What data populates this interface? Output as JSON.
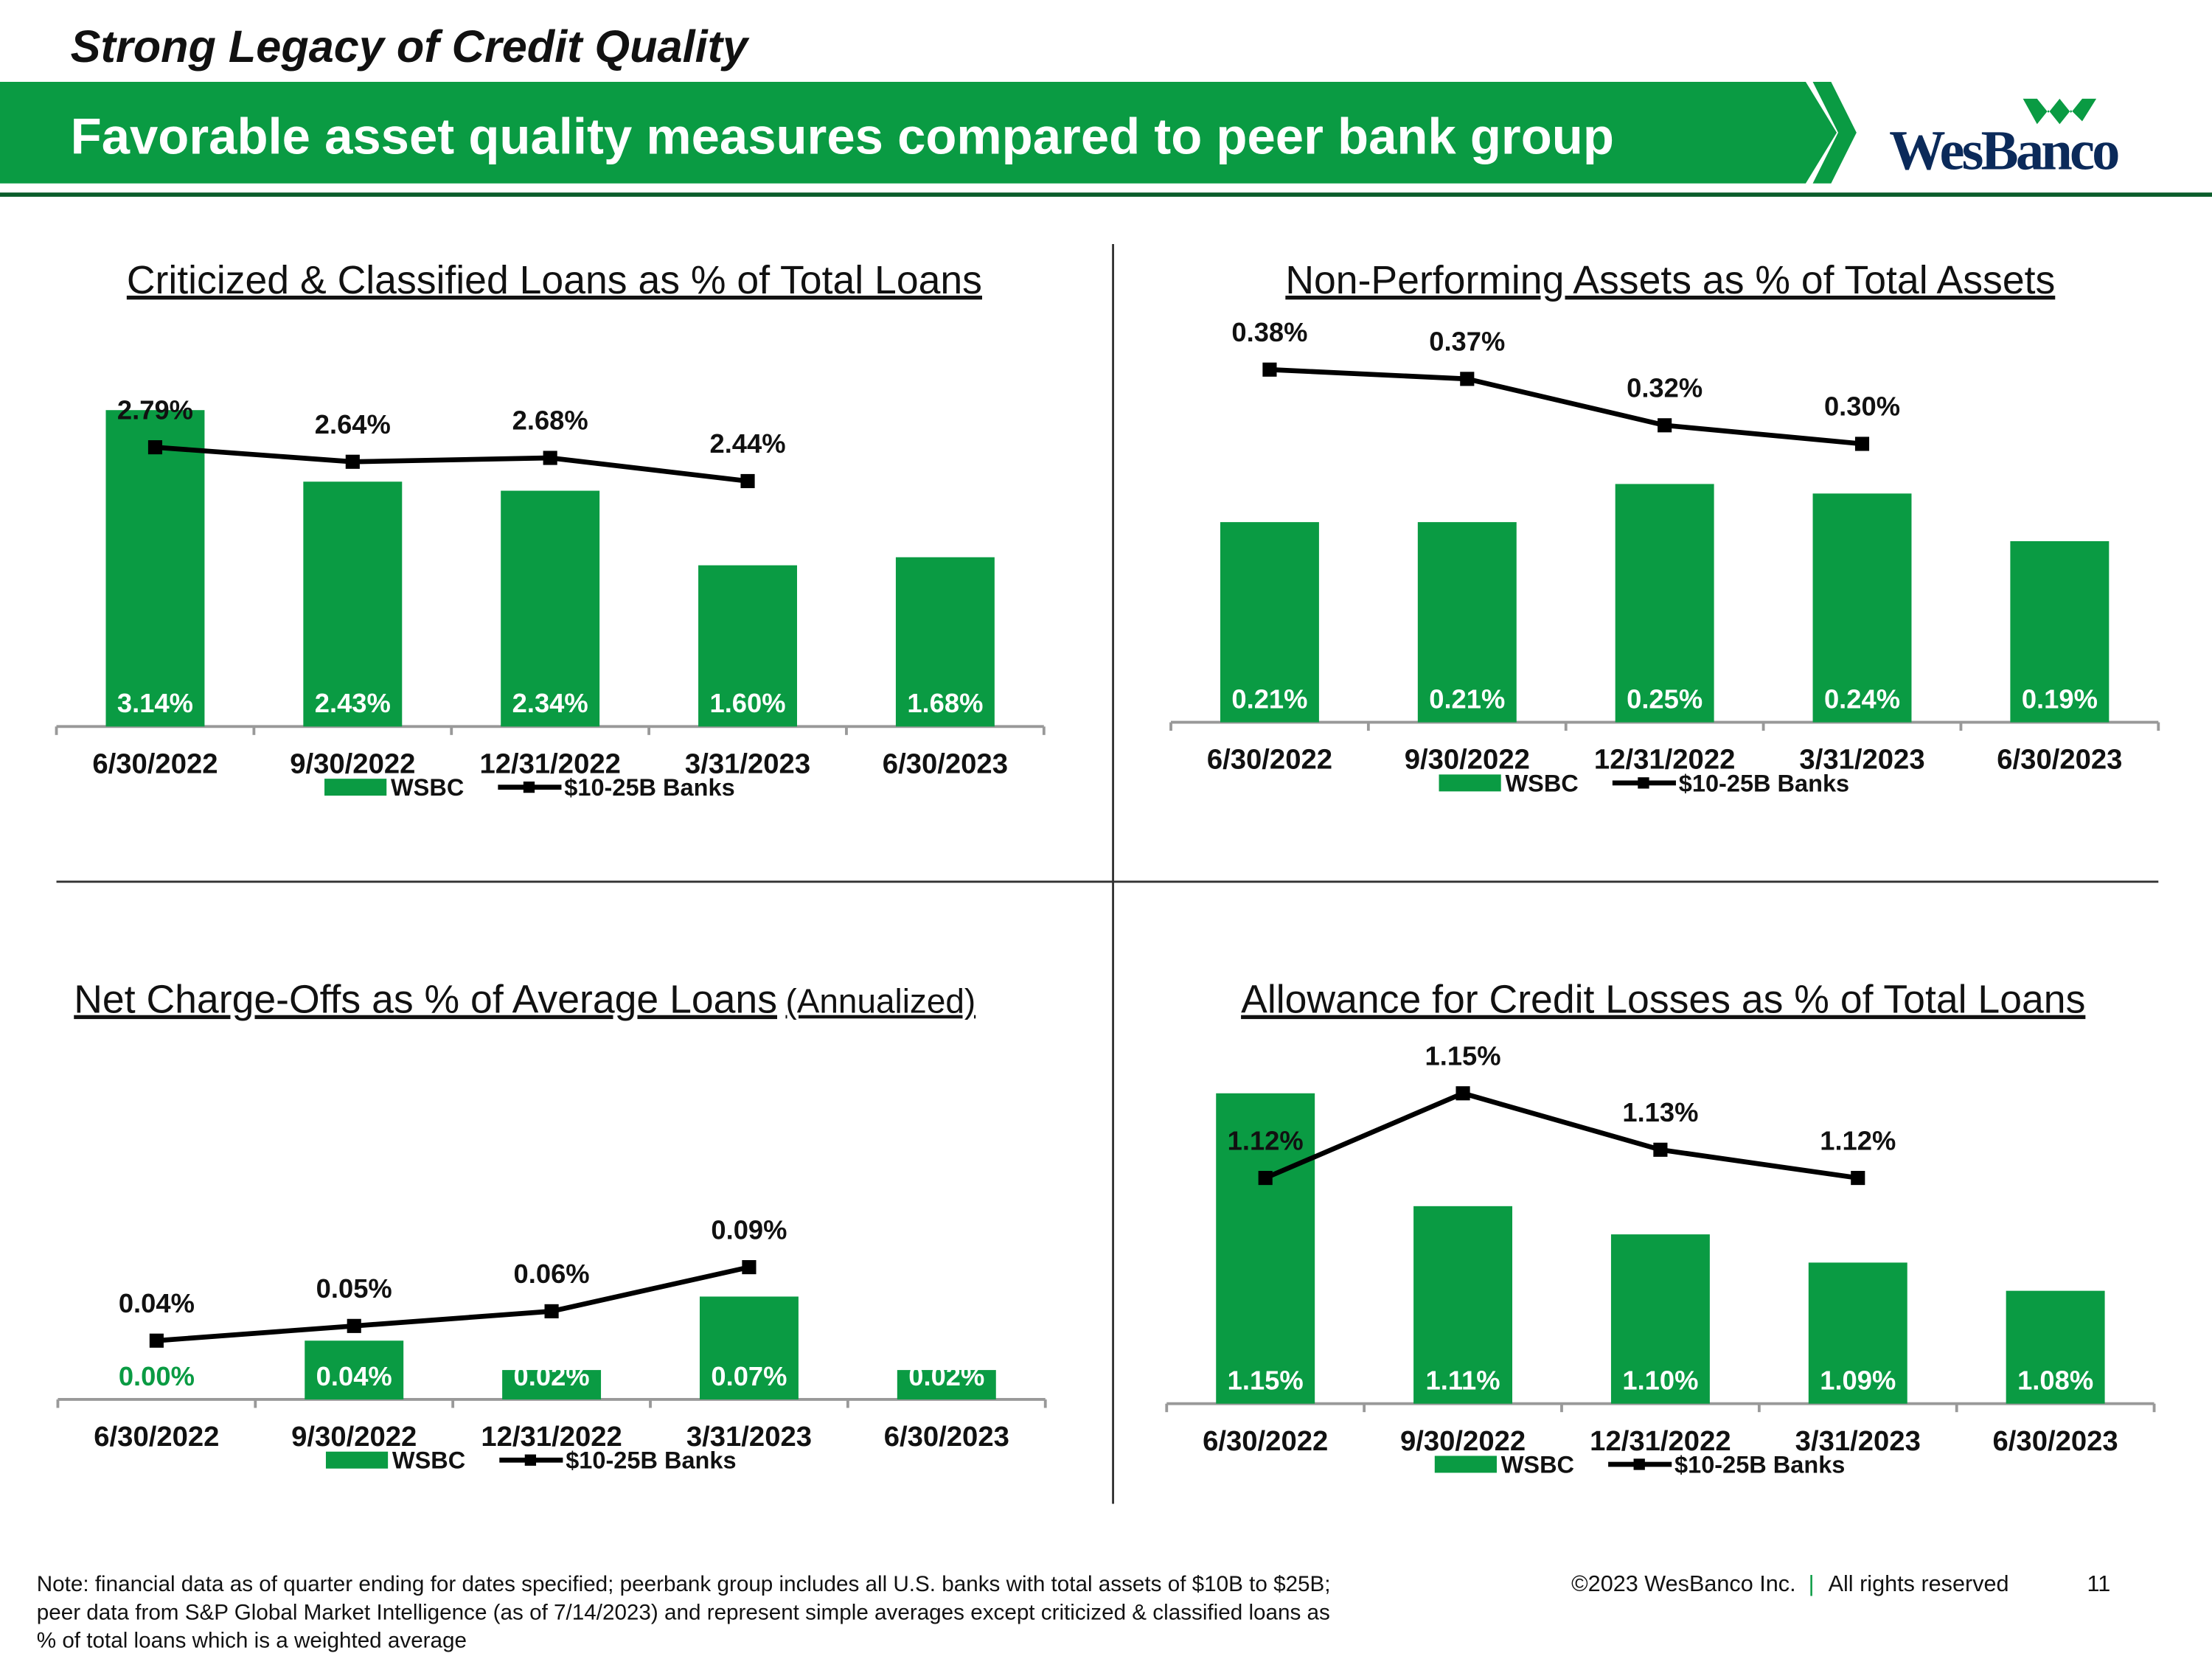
{
  "header": {
    "section": "Strong Legacy of Credit Quality",
    "title": "Favorable asset quality measures compared to peer bank group",
    "logo": "WesBanco"
  },
  "chart_data": [
    {
      "type": "combo",
      "title": "Criticized & Classified Loans as % of Total Loans",
      "categories": [
        "6/30/2022",
        "9/30/2022",
        "12/31/2022",
        "3/31/2023",
        "6/30/2023"
      ],
      "series": [
        {
          "name": "WSBC",
          "color": "#0a9b43",
          "values": [
            3.14,
            2.43,
            2.34,
            1.6,
            1.68
          ],
          "value_labels": [
            "3.14%",
            "2.43%",
            "2.34%",
            "1.60%",
            "1.68%"
          ]
        },
        {
          "name": "$10-25B Banks",
          "color": "#000000",
          "axis": "y2",
          "values": [
            2.79,
            2.64,
            2.68,
            2.44,
            null
          ],
          "value_labels": [
            "2.79%",
            "2.64%",
            "2.68%",
            "2.44%",
            null
          ]
        }
      ],
      "ylim": [
        0,
        3.5
      ],
      "y2lim": [
        -0.1,
        3.55
      ]
    },
    {
      "type": "combo",
      "title": "Non-Performing Assets as % of Total Assets",
      "categories": [
        "6/30/2022",
        "9/30/2022",
        "12/31/2022",
        "3/31/2023",
        "6/30/2023"
      ],
      "series": [
        {
          "name": "WSBC",
          "color": "#0a9b43",
          "values": [
            0.21,
            0.21,
            0.25,
            0.24,
            0.19
          ],
          "value_labels": [
            "0.21%",
            "0.21%",
            "0.25%",
            "0.24%",
            "0.19%"
          ]
        },
        {
          "name": "$10-25B Banks",
          "color": "#000000",
          "axis": "y2",
          "values": [
            0.38,
            0.37,
            0.32,
            0.3,
            null
          ],
          "value_labels": [
            "0.38%",
            "0.37%",
            "0.32%",
            "0.30%",
            null
          ]
        }
      ],
      "ylim": [
        0,
        0.37
      ],
      "y2lim": [
        0,
        0.38
      ]
    },
    {
      "type": "combo",
      "title": "Net Charge-Offs as % of Average Loans",
      "subtitle": "(Annualized)",
      "categories": [
        "6/30/2022",
        "9/30/2022",
        "12/31/2022",
        "3/31/2023",
        "6/30/2023"
      ],
      "series": [
        {
          "name": "WSBC",
          "color": "#0a9b43",
          "values": [
            0.0,
            0.04,
            0.02,
            0.07,
            0.02
          ],
          "value_labels": [
            "0.00%",
            "0.04%",
            "0.02%",
            "0.07%",
            "0.02%"
          ]
        },
        {
          "name": "$10-25B Banks",
          "color": "#000000",
          "axis": "y2",
          "values": [
            0.04,
            0.05,
            0.06,
            0.09,
            null
          ],
          "value_labels": [
            "0.04%",
            "0.05%",
            "0.06%",
            "0.09%",
            null
          ]
        }
      ],
      "ylim": [
        0,
        0.24
      ],
      "y2lim": [
        0,
        0.24
      ]
    },
    {
      "type": "combo",
      "title": "Allowance for Credit Losses as % of Total Loans",
      "categories": [
        "6/30/2022",
        "9/30/2022",
        "12/31/2022",
        "3/31/2023",
        "6/30/2023"
      ],
      "series": [
        {
          "name": "WSBC",
          "color": "#0a9b43",
          "values": [
            1.15,
            1.11,
            1.1,
            1.09,
            1.08
          ],
          "value_labels": [
            "1.15%",
            "1.11%",
            "1.10%",
            "1.09%",
            "1.08%"
          ]
        },
        {
          "name": "$10-25B Banks",
          "color": "#000000",
          "axis": "y2",
          "values": [
            1.12,
            1.15,
            1.13,
            1.12,
            null
          ],
          "value_labels": [
            "1.12%",
            "1.15%",
            "1.13%",
            "1.12%",
            null
          ]
        }
      ],
      "ylim": [
        1.04,
        1.165
      ],
      "y2lim": [
        1.04,
        1.165
      ]
    }
  ],
  "footer": {
    "note": [
      "Note: financial data as of quarter ending for dates specified; peerbank group includes all U.S. banks with total assets of $10B to $25B;",
      "peer data from S&P Global Market Intelligence (as of 7/14/2023) and represent simple averages except criticized & classified loans as",
      "% of total loans which is a weighted average"
    ],
    "copyright": "©2023 WesBanco Inc.",
    "separator": "|",
    "rights": "All rights reserved",
    "page": "11"
  }
}
